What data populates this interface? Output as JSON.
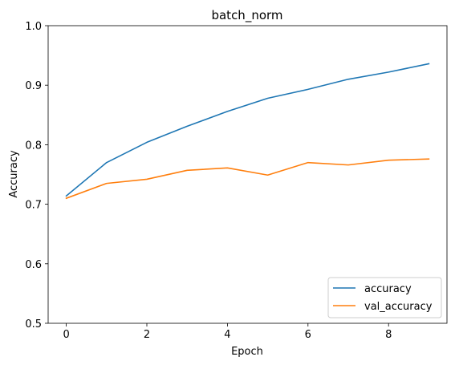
{
  "chart_data": {
    "type": "line",
    "title": "batch_norm",
    "xlabel": "Epoch",
    "ylabel": "Accuracy",
    "xlim": [
      -0.45,
      9.45
    ],
    "ylim": [
      0.5,
      1.0
    ],
    "xticks": [
      0,
      2,
      4,
      6,
      8
    ],
    "xtick_labels": [
      "0",
      "2",
      "4",
      "6",
      "8"
    ],
    "yticks": [
      0.5,
      0.6,
      0.7,
      0.8,
      0.9,
      1.0
    ],
    "ytick_labels": [
      "0.5",
      "0.6",
      "0.7",
      "0.8",
      "0.9",
      "1.0"
    ],
    "grid": false,
    "legend_position": "lower-right",
    "x": [
      0,
      1,
      2,
      3,
      4,
      5,
      6,
      7,
      8,
      9
    ],
    "series": [
      {
        "name": "accuracy",
        "color": "#1f77b4",
        "values": [
          0.714,
          0.77,
          0.804,
          0.831,
          0.856,
          0.878,
          0.893,
          0.91,
          0.922,
          0.936
        ]
      },
      {
        "name": "val_accuracy",
        "color": "#ff7f0e",
        "values": [
          0.71,
          0.735,
          0.742,
          0.757,
          0.761,
          0.749,
          0.77,
          0.766,
          0.774,
          0.776
        ]
      }
    ]
  }
}
